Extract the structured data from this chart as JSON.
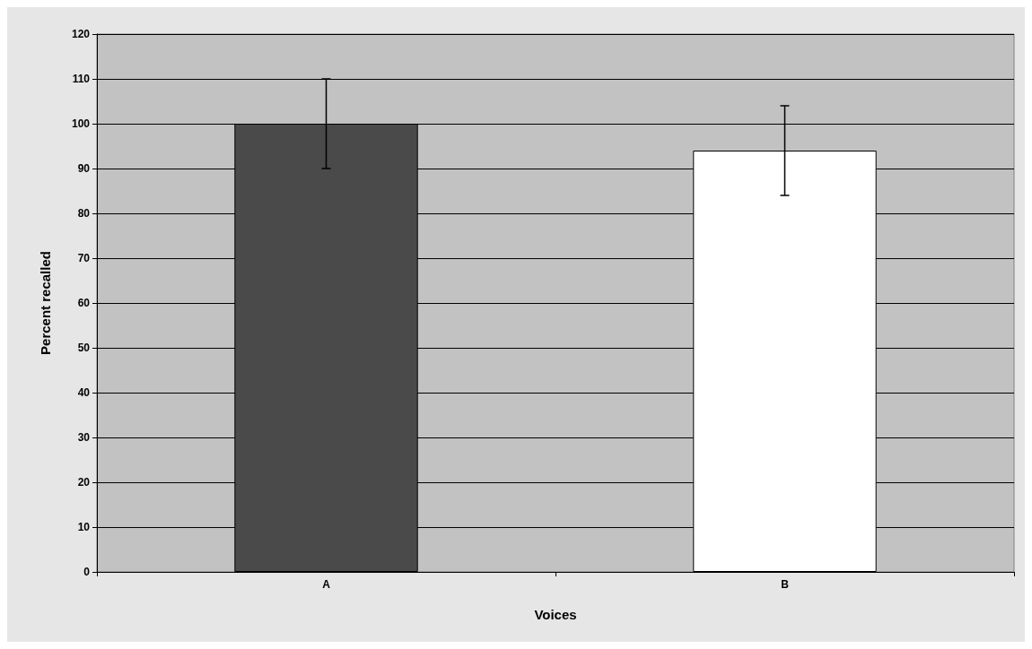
{
  "chart_data": {
    "type": "bar",
    "xlabel": "Voices",
    "ylabel": "Percent recalled",
    "categories": [
      "A",
      "B"
    ],
    "values": [
      100,
      94
    ],
    "colors": [
      "#4a4a4a",
      "#ffffff"
    ],
    "errors": [
      10,
      10
    ],
    "ylim": [
      0,
      120
    ],
    "yticks": [
      0,
      10,
      20,
      30,
      40,
      50,
      60,
      70,
      80,
      90,
      100,
      110,
      120
    ],
    "grid": "y"
  }
}
